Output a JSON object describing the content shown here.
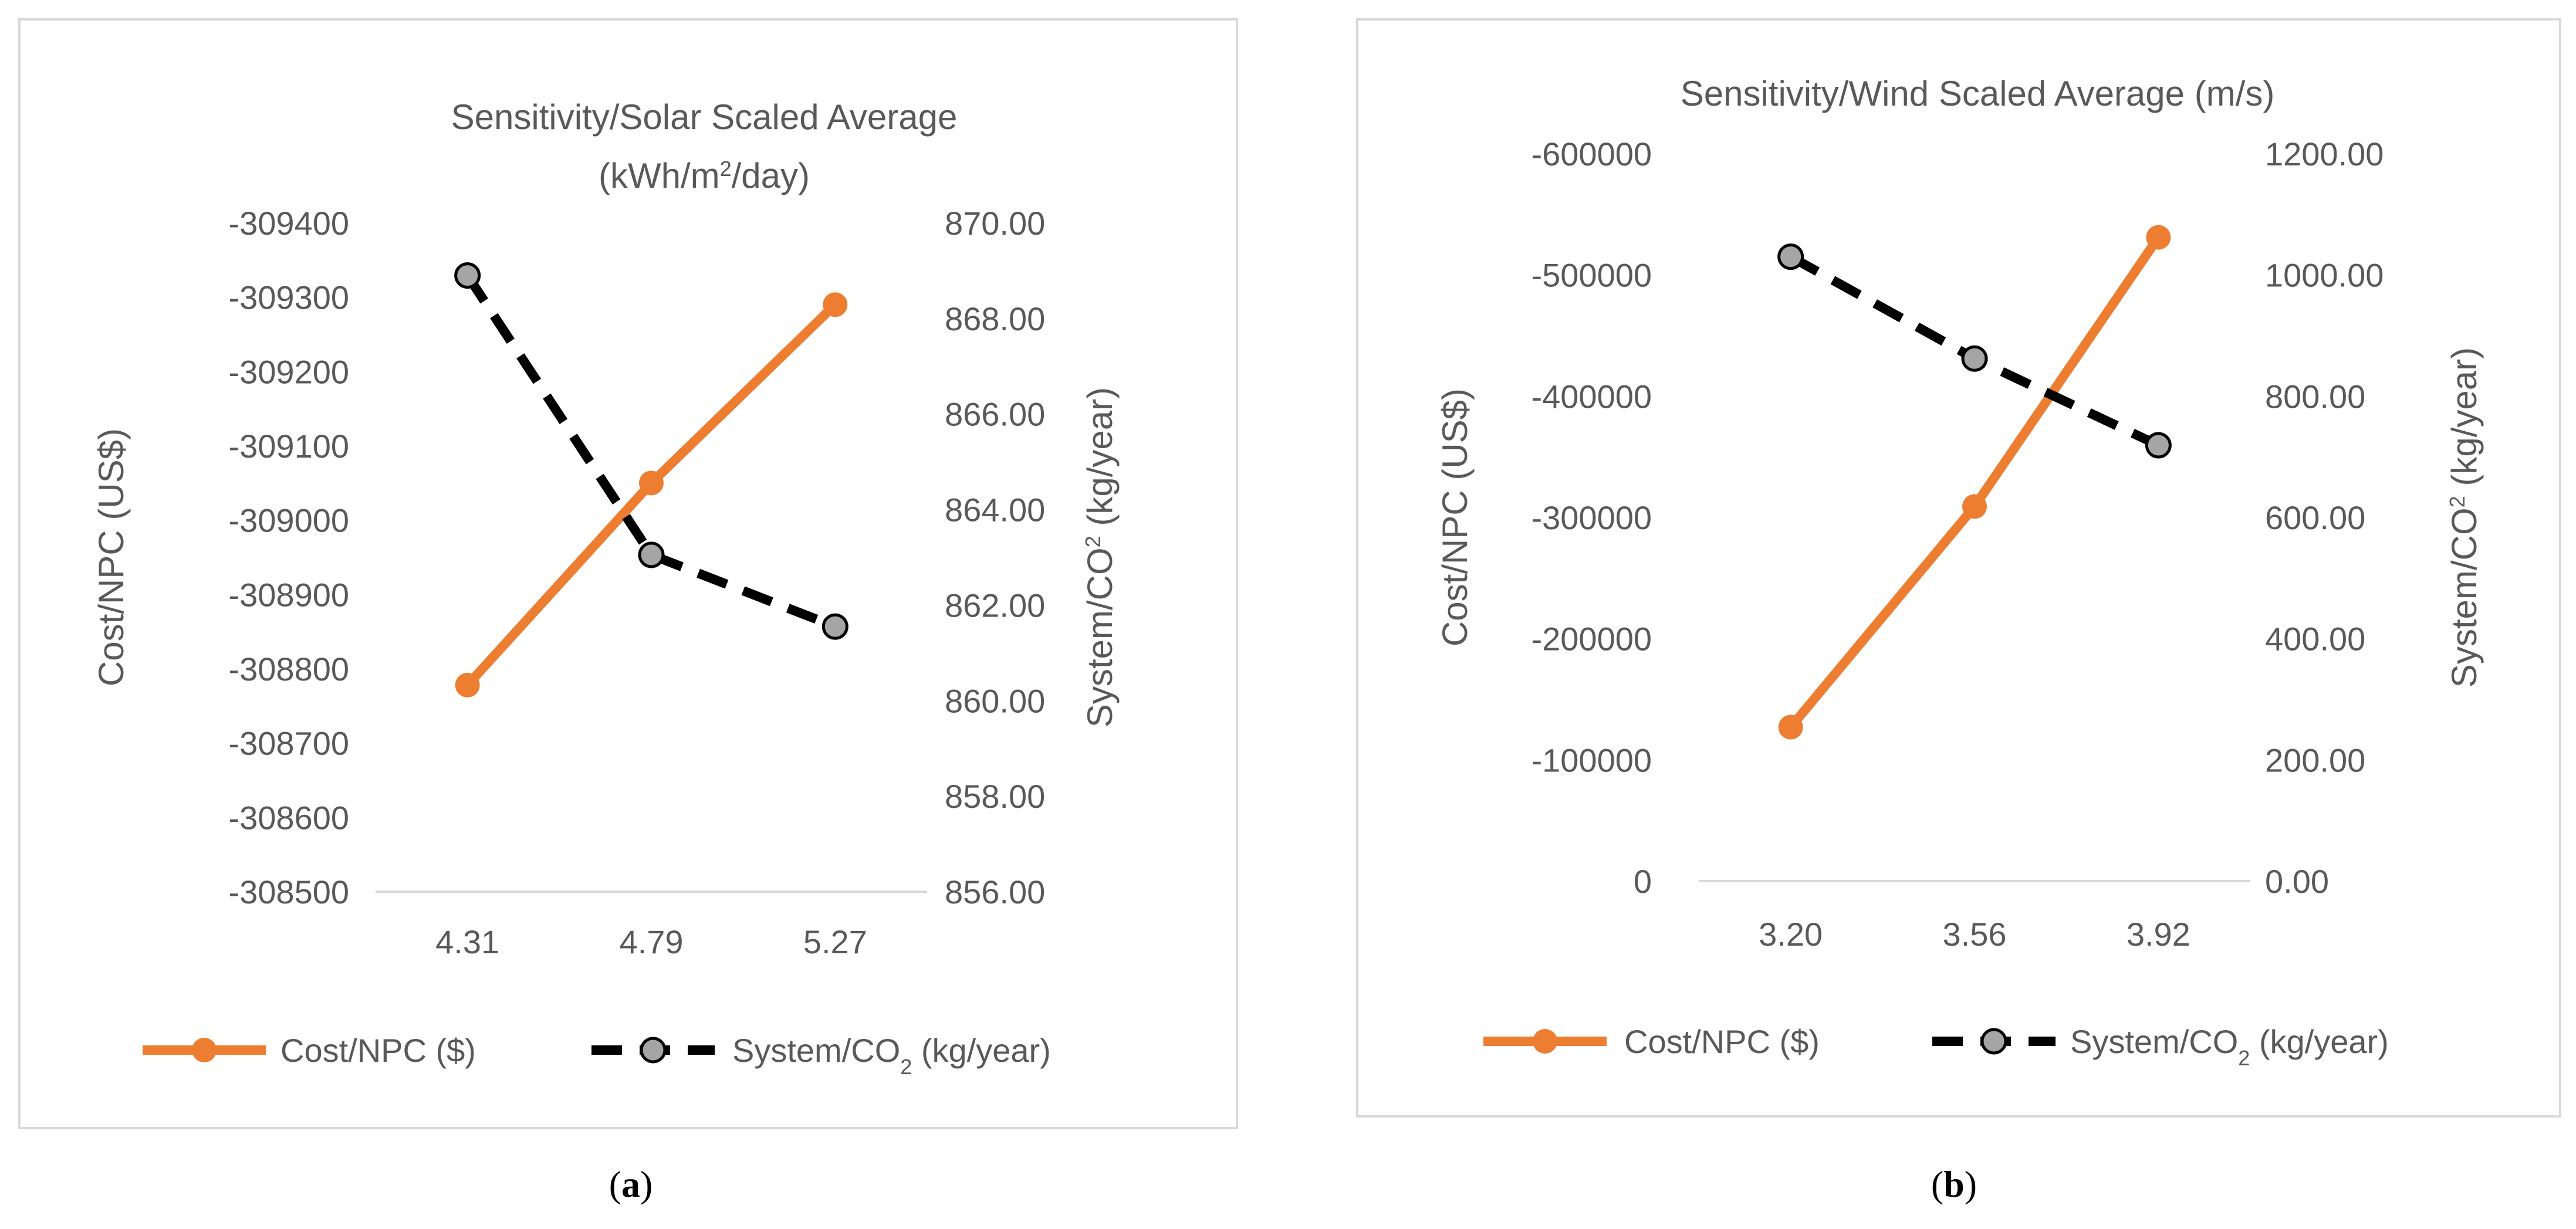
{
  "charts": [
    {
      "panel_label": "(a)",
      "panel_label_parts": {
        "open": "(",
        "letter": "a",
        "close": ")"
      },
      "title_lines": [
        "Sensitivity/Solar Scaled Average"
      ],
      "title_unit": {
        "pre": "(kWh/m",
        "sup": "2",
        "post": "/day)"
      },
      "y1_label": "Cost/NPC (US$)",
      "y2_label": {
        "pre": "System/CO",
        "sup": "2",
        "post": " (kg/year)"
      },
      "legend": [
        {
          "pre": "Cost/NPC ($)",
          "sub": "",
          "post": ""
        },
        {
          "pre": "System/CO",
          "sub": "2",
          "post": " (kg/year)"
        }
      ]
    },
    {
      "panel_label": "(b)",
      "panel_label_parts": {
        "open": "(",
        "letter": "b",
        "close": ")"
      },
      "title_lines": [
        "Sensitivity/Wind Scaled Average (m/s)"
      ],
      "title_unit": null,
      "y1_label": "Cost/NPC (US$)",
      "y2_label": {
        "pre": "System/CO",
        "sup": "2",
        "post": " (kg/year)"
      },
      "legend": [
        {
          "pre": "Cost/NPC ($)",
          "sub": "",
          "post": ""
        },
        {
          "pre": "System/CO",
          "sub": "2",
          "post": " (kg/year)"
        }
      ]
    }
  ],
  "chart_data": [
    {
      "type": "line",
      "title": "Sensitivity/Solar Scaled Average (kWh/m2/day)",
      "categories": [
        "4.31",
        "4.79",
        "5.27"
      ],
      "y1": {
        "label": "Cost/NPC (US$)",
        "ticks": [
          "-309400",
          "-309300",
          "-309200",
          "-309100",
          "-309000",
          "-308900",
          "-308800",
          "-308700",
          "-308600",
          "-308500"
        ],
        "range": [
          -309400,
          -308500
        ],
        "inverted": true
      },
      "y2": {
        "label": "System/CO2 (kg/year)",
        "ticks": [
          "870.00",
          "868.00",
          "866.00",
          "864.00",
          "862.00",
          "860.00",
          "858.00",
          "856.00"
        ],
        "range": [
          856,
          870
        ]
      },
      "series": [
        {
          "name": "Cost/NPC ($)",
          "axis": "y1",
          "values": [
            -308778,
            -309050,
            -309290
          ],
          "color": "#ED7D31",
          "style": "solid"
        },
        {
          "name": "System/CO2 (kg/year)",
          "axis": "y2",
          "values": [
            868.9,
            863.05,
            861.55
          ],
          "color": "#000000",
          "marker": "#A5A5A5",
          "style": "dashed"
        }
      ],
      "legend_position": "bottom"
    },
    {
      "type": "line",
      "title": "Sensitivity/Wind Scaled Average (m/s)",
      "categories": [
        "3.20",
        "3.56",
        "3.92"
      ],
      "y1": {
        "label": "Cost/NPC (US$)",
        "ticks": [
          "-600000",
          "-500000",
          "-400000",
          "-300000",
          "-200000",
          "-100000",
          "0"
        ],
        "range": [
          -600000,
          0
        ],
        "inverted": true
      },
      "y2": {
        "label": "System/CO2 (kg/year)",
        "ticks": [
          "1200.00",
          "1000.00",
          "800.00",
          "600.00",
          "400.00",
          "200.00",
          "0.00"
        ],
        "range": [
          0,
          1200
        ]
      },
      "series": [
        {
          "name": "Cost/NPC ($)",
          "axis": "y1",
          "values": [
            -127000,
            -309000,
            -531000
          ],
          "color": "#ED7D31",
          "style": "solid"
        },
        {
          "name": "System/CO2 (kg/year)",
          "axis": "y2",
          "values": [
            1030,
            862,
            719
          ],
          "color": "#000000",
          "marker": "#A5A5A5",
          "style": "dashed"
        }
      ],
      "legend_position": "bottom"
    }
  ]
}
